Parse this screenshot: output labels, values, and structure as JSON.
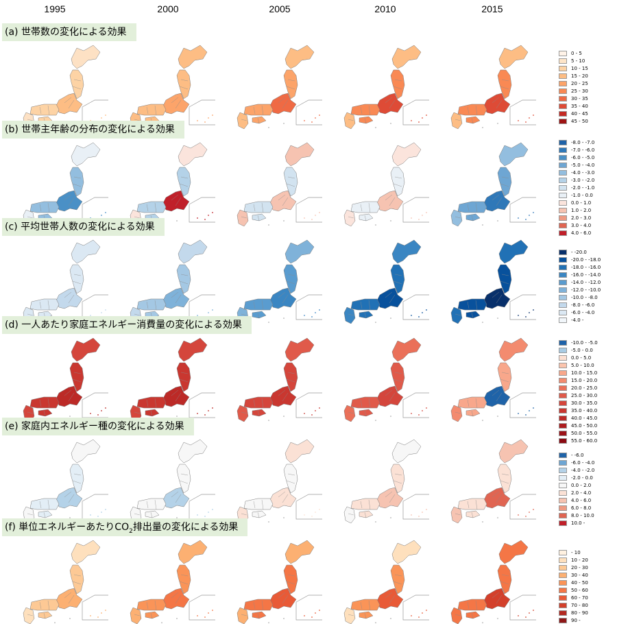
{
  "years": [
    "1995",
    "2000",
    "2005",
    "2010",
    "2015"
  ],
  "panels": [
    {
      "id": "a",
      "title": "(a) 世帯数の変化による効果",
      "legend": [
        {
          "label": "0 - 5",
          "color": "#fff3e8"
        },
        {
          "label": "5 - 10",
          "color": "#fee5c8"
        },
        {
          "label": "10 - 15",
          "color": "#fdd3a5"
        },
        {
          "label": "15 - 20",
          "color": "#fdbd84"
        },
        {
          "label": "20 - 25",
          "color": "#fca46a"
        },
        {
          "label": "25 - 30",
          "color": "#f98954"
        },
        {
          "label": "30 - 35",
          "color": "#ef6a44"
        },
        {
          "label": "35 - 40",
          "color": "#de4b36"
        },
        {
          "label": "40 - 45",
          "color": "#c42b25"
        },
        {
          "label": "45 - 50",
          "color": "#9e1414"
        }
      ],
      "map_fills": [
        {
          "north": "#fde1c4",
          "main": "#fdd3a5",
          "accent": "#fdbd84"
        },
        {
          "north": "#fdbd84",
          "main": "#fdbd84",
          "accent": "#fca46a"
        },
        {
          "north": "#fdbd84",
          "main": "#fca46a",
          "accent": "#ef6a44"
        },
        {
          "north": "#fdbd84",
          "main": "#f98954",
          "accent": "#de4b36"
        },
        {
          "north": "#fdbd84",
          "main": "#f98954",
          "accent": "#de4b36"
        }
      ]
    },
    {
      "id": "b",
      "title": "(b) 世帯主年齢の分布の変化による効果",
      "legend": [
        {
          "label": "-8.0 - -7.0",
          "color": "#1f63a8"
        },
        {
          "label": "-7.0 - -6.0",
          "color": "#2f78b8"
        },
        {
          "label": "-6.0 - -5.0",
          "color": "#4a90c6"
        },
        {
          "label": "-5.0 - -4.0",
          "color": "#6ea6d3"
        },
        {
          "label": "-4.0 - -3.0",
          "color": "#93bedf"
        },
        {
          "label": "-3.0 - -2.0",
          "color": "#b4d2e8"
        },
        {
          "label": "-2.0 - -1.0",
          "color": "#d2e3f0"
        },
        {
          "label": "-1.0 - 0.0",
          "color": "#e9f0f6"
        },
        {
          "label": "0.0 - 1.0",
          "color": "#fbe4dc"
        },
        {
          "label": "1.0 - 2.0",
          "color": "#f6c3b1"
        },
        {
          "label": "2.0 - 3.0",
          "color": "#ee9a82"
        },
        {
          "label": "3.0 - 4.0",
          "color": "#e06552"
        },
        {
          "label": "4.0 - 6.0",
          "color": "#c0202a"
        }
      ],
      "map_fills": [
        {
          "north": "#e9f0f6",
          "main": "#93bedf",
          "accent": "#4a90c6"
        },
        {
          "north": "#fbe4dc",
          "main": "#b4d2e8",
          "accent": "#c0202a"
        },
        {
          "north": "#f6c3b1",
          "main": "#d2e3f0",
          "accent": "#f6c3b1"
        },
        {
          "north": "#fbe4dc",
          "main": "#e9f0f6",
          "accent": "#f6c3b1"
        },
        {
          "north": "#93bedf",
          "main": "#6ea6d3",
          "accent": "#2f78b8"
        }
      ]
    },
    {
      "id": "c",
      "title": "(c) 平均世帯人数の変化による効果",
      "legend": [
        {
          "label": "- -20.0",
          "color": "#08306b"
        },
        {
          "label": "-20.0 - -18.0",
          "color": "#08519c"
        },
        {
          "label": "-18.0 - -16.0",
          "color": "#2171b5"
        },
        {
          "label": "-16.0 - -14.0",
          "color": "#3b86c2"
        },
        {
          "label": "-14.0 - -12.0",
          "color": "#5a9ccf"
        },
        {
          "label": "-12.0 - -10.0",
          "color": "#7fb2d9"
        },
        {
          "label": "-10.0 - -8.0",
          "color": "#a4c8e4"
        },
        {
          "label": "-8.0 - -6.0",
          "color": "#c3d9ec"
        },
        {
          "label": "-6.0 - -4.0",
          "color": "#dbe8f3"
        },
        {
          "label": "-4.0 -",
          "color": "#f1f6fa"
        }
      ],
      "map_fills": [
        {
          "north": "#dbe8f3",
          "main": "#dbe8f3",
          "accent": "#c3d9ec"
        },
        {
          "north": "#c3d9ec",
          "main": "#a4c8e4",
          "accent": "#7fb2d9"
        },
        {
          "north": "#7fb2d9",
          "main": "#5a9ccf",
          "accent": "#3b86c2"
        },
        {
          "north": "#3b86c2",
          "main": "#2171b5",
          "accent": "#08519c"
        },
        {
          "north": "#2171b5",
          "main": "#08519c",
          "accent": "#08306b"
        }
      ]
    },
    {
      "id": "d",
      "title": "(d) 一人あたり家庭エネルギー消費量の変化による効果",
      "legend": [
        {
          "label": "-10.0 - -5.0",
          "color": "#1f63a8"
        },
        {
          "label": "-5.0 - 0.0",
          "color": "#a9cce4"
        },
        {
          "label": "0.0 - 5.0",
          "color": "#fde0d2"
        },
        {
          "label": "5.0 - 10.0",
          "color": "#fbc4ad"
        },
        {
          "label": "10.0 - 15.0",
          "color": "#f8a78b"
        },
        {
          "label": "15.0 - 20.0",
          "color": "#f38b6f"
        },
        {
          "label": "20.0 - 25.0",
          "color": "#ea7059"
        },
        {
          "label": "25.0 - 30.0",
          "color": "#e05a4a"
        },
        {
          "label": "30.0 - 35.0",
          "color": "#d4463c"
        },
        {
          "label": "35.0 - 40.0",
          "color": "#c93730"
        },
        {
          "label": "40.0 - 45.0",
          "color": "#bc2a27"
        },
        {
          "label": "45.0 - 50.0",
          "color": "#ad1d1f"
        },
        {
          "label": "50.0 - 55.0",
          "color": "#9c1318"
        },
        {
          "label": "55.0 - 60.0",
          "color": "#8a0a12"
        }
      ],
      "map_fills": [
        {
          "north": "#d4463c",
          "main": "#c93730",
          "accent": "#bc2a27"
        },
        {
          "north": "#d4463c",
          "main": "#c93730",
          "accent": "#bc2a27"
        },
        {
          "north": "#e05a4a",
          "main": "#d4463c",
          "accent": "#c93730"
        },
        {
          "north": "#ea7059",
          "main": "#e05a4a",
          "accent": "#d4463c"
        },
        {
          "north": "#f38b6f",
          "main": "#f8a78b",
          "accent": "#1f63a8"
        }
      ]
    },
    {
      "id": "e",
      "title": "(e) 家庭内エネルギー種の変化による効果",
      "legend": [
        {
          "label": "- -6.0",
          "color": "#1f63a8"
        },
        {
          "label": "-6.0 - -4.0",
          "color": "#6ea6d3"
        },
        {
          "label": "-4.0 - -2.0",
          "color": "#b4d2e8"
        },
        {
          "label": "-2.0 - 0.0",
          "color": "#e3eef6"
        },
        {
          "label": "0.0 - 2.0",
          "color": "#f7f7f7"
        },
        {
          "label": "2.0 - 4.0",
          "color": "#fbe1d5"
        },
        {
          "label": "4.0 - 6.0",
          "color": "#f6c3b1"
        },
        {
          "label": "6.0 - 8.0",
          "color": "#ee9a82"
        },
        {
          "label": "8.0 - 10.0",
          "color": "#e06552"
        },
        {
          "label": "10.0 -",
          "color": "#c0202a"
        }
      ],
      "map_fills": [
        {
          "north": "#f7f7f7",
          "main": "#e3eef6",
          "accent": "#b4d2e8"
        },
        {
          "north": "#f7f7f7",
          "main": "#f7f7f7",
          "accent": "#b4d2e8"
        },
        {
          "north": "#fbe1d5",
          "main": "#f7f7f7",
          "accent": "#fbe1d5"
        },
        {
          "north": "#f7f7f7",
          "main": "#fbe1d5",
          "accent": "#f6c3b1"
        },
        {
          "north": "#f6c3b1",
          "main": "#fbe1d5",
          "accent": "#e06552"
        }
      ]
    },
    {
      "id": "f",
      "title_pre": "(f) 単位エネルギーあたりCO",
      "title_sub": "2",
      "title_post": "排出量の変化による効果",
      "legend": [
        {
          "label": "- 10",
          "color": "#fff1e0"
        },
        {
          "label": "10 - 20",
          "color": "#fee0bd"
        },
        {
          "label": "20 - 30",
          "color": "#fdc995"
        },
        {
          "label": "30 - 40",
          "color": "#fcb072"
        },
        {
          "label": "40 - 50",
          "color": "#fa9458"
        },
        {
          "label": "50 - 60",
          "color": "#f47646"
        },
        {
          "label": "60 - 70",
          "color": "#e85a37"
        },
        {
          "label": "70 - 80",
          "color": "#d3402b"
        },
        {
          "label": "80 - 90",
          "color": "#b32a22"
        },
        {
          "label": "90 -",
          "color": "#8f1818"
        }
      ],
      "map_fills": [
        {
          "north": "#fee0bd",
          "main": "#fdc995",
          "accent": "#fcb072"
        },
        {
          "north": "#fcb072",
          "main": "#fa9458",
          "accent": "#f47646"
        },
        {
          "north": "#fcb072",
          "main": "#f47646",
          "accent": "#e85a37"
        },
        {
          "north": "#fee0bd",
          "main": "#fa9458",
          "accent": "#e85a37"
        },
        {
          "north": "#f47646",
          "main": "#f47646",
          "accent": "#d3402b"
        }
      ]
    }
  ]
}
